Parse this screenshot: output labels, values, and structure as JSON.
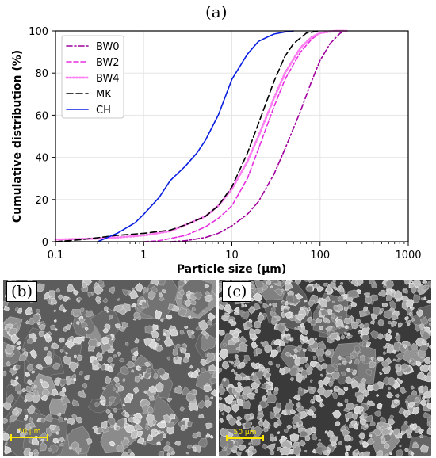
{
  "panel_a_label": "(a)",
  "panel_b_label": "(b)",
  "panel_c_label": "(c)",
  "scale_bar_b": "50 µm",
  "scale_bar_c": "50 µm",
  "colors": {
    "BW0": "#a0009e",
    "BW2": "#e62fe0",
    "BW4": "#ff7cf2",
    "MK": "#000000",
    "CH": "#0a1fe0"
  },
  "chart_data": {
    "type": "line",
    "xlabel": "Particle size (µm)",
    "ylabel": "Cumulative distribution (%)",
    "xscale": "log",
    "xlim": [
      0.1,
      1000
    ],
    "ylim": [
      0,
      100
    ],
    "xticks": [
      "0.1",
      "1",
      "10",
      "100",
      "1000"
    ],
    "yticks": [
      "0",
      "20",
      "40",
      "60",
      "80",
      "100"
    ],
    "grid": true,
    "legend_position": "top-left",
    "series": [
      {
        "name": "BW0",
        "style": "dash-dot",
        "x": [
          2,
          3,
          5,
          7,
          10,
          15,
          20,
          30,
          40,
          60,
          80,
          100,
          130,
          170,
          200
        ],
        "y": [
          0,
          0.5,
          2,
          4,
          7.5,
          13,
          19,
          32,
          44,
          62,
          76,
          86,
          94,
          99,
          100
        ]
      },
      {
        "name": "BW2",
        "style": "dashed",
        "x": [
          1,
          1.5,
          2,
          3,
          5,
          7,
          10,
          15,
          20,
          30,
          40,
          60,
          80,
          100,
          130,
          180
        ],
        "y": [
          0,
          0.5,
          1.5,
          3,
          7,
          11,
          17,
          30,
          44,
          64,
          77,
          90,
          96,
          99,
          100,
          100
        ]
      },
      {
        "name": "BW4",
        "style": "dotted",
        "x": [
          0.1,
          0.3,
          0.5,
          1,
          2,
          3,
          5,
          7,
          10,
          15,
          20,
          30,
          40,
          60,
          80,
          100,
          150,
          200
        ],
        "y": [
          1,
          1.5,
          2,
          3,
          5,
          8,
          12,
          17,
          25,
          38,
          50,
          68,
          80,
          92,
          97,
          99,
          100,
          100
        ]
      },
      {
        "name": "MK",
        "style": "long-dash",
        "x": [
          0.1,
          0.2,
          0.5,
          1,
          2,
          3,
          5,
          7,
          10,
          15,
          20,
          25,
          30,
          40,
          50,
          70,
          100
        ],
        "y": [
          0,
          1,
          3,
          4,
          5.5,
          8,
          12,
          17,
          26,
          42,
          56,
          67,
          76,
          88,
          94,
          99,
          100
        ]
      },
      {
        "name": "CH",
        "style": "solid",
        "x": [
          0.3,
          0.5,
          0.8,
          1,
          1.5,
          2,
          3,
          4,
          5,
          7,
          10,
          15,
          20,
          25,
          30,
          40,
          50
        ],
        "y": [
          0,
          4,
          9,
          13,
          21,
          29,
          36,
          42,
          48,
          60,
          77,
          89,
          95,
          97,
          98.5,
          99.5,
          100
        ]
      }
    ]
  }
}
